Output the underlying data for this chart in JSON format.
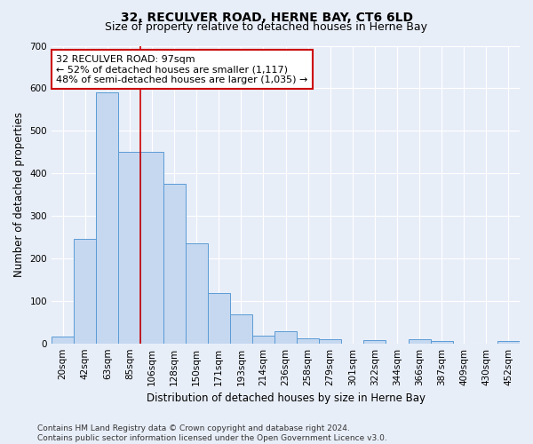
{
  "title": "32, RECULVER ROAD, HERNE BAY, CT6 6LD",
  "subtitle": "Size of property relative to detached houses in Herne Bay",
  "xlabel": "Distribution of detached houses by size in Herne Bay",
  "ylabel": "Number of detached properties",
  "categories": [
    "20sqm",
    "42sqm",
    "63sqm",
    "85sqm",
    "106sqm",
    "128sqm",
    "150sqm",
    "171sqm",
    "193sqm",
    "214sqm",
    "236sqm",
    "258sqm",
    "279sqm",
    "301sqm",
    "322sqm",
    "344sqm",
    "366sqm",
    "387sqm",
    "409sqm",
    "430sqm",
    "452sqm"
  ],
  "values": [
    15,
    245,
    590,
    450,
    450,
    375,
    235,
    118,
    68,
    18,
    28,
    11,
    10,
    0,
    8,
    0,
    9,
    5,
    0,
    0,
    5
  ],
  "bar_color": "#c5d8f0",
  "bar_edge_color": "#5b9bd5",
  "vline_x": 3.5,
  "vline_color": "#cc0000",
  "annotation_text": "32 RECULVER ROAD: 97sqm\n← 52% of detached houses are smaller (1,117)\n48% of semi-detached houses are larger (1,035) →",
  "annotation_box_color": "#ffffff",
  "annotation_border_color": "#cc0000",
  "background_color": "#e8eef8",
  "plot_bg_color": "#e8eef8",
  "ylim": [
    0,
    700
  ],
  "yticks": [
    0,
    100,
    200,
    300,
    400,
    500,
    600,
    700
  ],
  "footer_text": "Contains HM Land Registry data © Crown copyright and database right 2024.\nContains public sector information licensed under the Open Government Licence v3.0.",
  "title_fontsize": 10,
  "subtitle_fontsize": 9,
  "xlabel_fontsize": 8.5,
  "ylabel_fontsize": 8.5,
  "tick_fontsize": 7.5,
  "annotation_fontsize": 8,
  "footer_fontsize": 6.5
}
